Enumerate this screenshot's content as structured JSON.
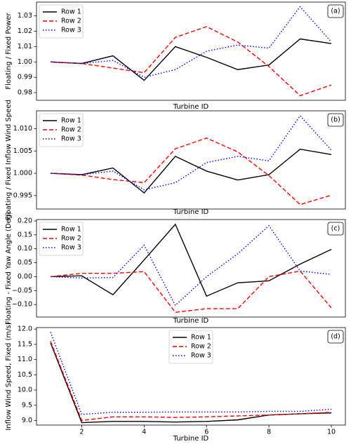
{
  "chart_data": [
    {
      "type": "line",
      "annotation": "(a)",
      "x_label": "Turbine ID",
      "y_label": "Floating / Fixed Power",
      "x": [
        1,
        2,
        3,
        4,
        5,
        6,
        7,
        8,
        9,
        10
      ],
      "xlim": [
        0.55,
        10.45
      ],
      "ylim": [
        0.975,
        1.039
      ],
      "yticks": [
        {
          "value": 0.98,
          "label": "0.98"
        },
        {
          "value": 0.99,
          "label": "0.99"
        },
        {
          "value": 1.0,
          "label": "1.00"
        },
        {
          "value": 1.01,
          "label": "1.01"
        },
        {
          "value": 1.02,
          "label": "1.02"
        },
        {
          "value": 1.03,
          "label": "1.03"
        }
      ],
      "legend": "upper left",
      "series": [
        {
          "name": "Row 1",
          "color": "#000000",
          "linestyle": "solid",
          "values": [
            1.0,
            0.999,
            1.004,
            0.988,
            1.01,
            1.003,
            0.995,
            0.998,
            1.015,
            1.012
          ]
        },
        {
          "name": "Row 2",
          "color": "#ff0000",
          "linestyle": "dashed",
          "values": [
            1.0,
            0.999,
            0.996,
            0.993,
            1.016,
            1.023,
            1.013,
            0.997,
            0.978,
            0.985
          ]
        },
        {
          "name": "Row 3",
          "color": "#0000ff",
          "linestyle": "dotted",
          "values": [
            1.0,
            0.999,
            1.001,
            0.99,
            0.995,
            1.007,
            1.011,
            1.009,
            1.036,
            1.013
          ]
        }
      ]
    },
    {
      "type": "line",
      "annotation": "(b)",
      "x_label": "Turbine ID",
      "y_label": "Floating / Fixed Inflow Wind Speed",
      "x": [
        1,
        2,
        3,
        4,
        5,
        6,
        7,
        8,
        9,
        10
      ],
      "xlim": [
        0.55,
        10.45
      ],
      "ylim": [
        0.992,
        1.014
      ],
      "yticks": [
        0.995,
        {
          "value": 1.0,
          "label": "1.000"
        },
        1.005,
        {
          "value": 1.01,
          "label": "1.010"
        }
      ],
      "legend": "upper left",
      "series": [
        {
          "name": "Row 1",
          "color": "#000000",
          "linestyle": "solid",
          "values": [
            1.0,
            0.9997,
            1.0012,
            0.9956,
            1.0038,
            1.0005,
            0.9985,
            0.9997,
            1.0054,
            1.0042
          ]
        },
        {
          "name": "Row 2",
          "color": "#ff0000",
          "linestyle": "dashed",
          "values": [
            1.0,
            0.9996,
            0.9986,
            0.9979,
            1.0055,
            1.0079,
            1.0048,
            0.9995,
            0.993,
            0.9951
          ]
        },
        {
          "name": "Row 3",
          "color": "#0000ff",
          "linestyle": "dotted",
          "values": [
            1.0,
            0.9997,
            1.0005,
            0.9963,
            0.9979,
            1.0024,
            1.0038,
            1.0028,
            1.0129,
            1.0052
          ]
        }
      ]
    },
    {
      "type": "line",
      "annotation": "(c)",
      "x_label": "Turbine ID",
      "y_label": "Floating - Fixed Yaw Angle (Deg)",
      "x": [
        1,
        2,
        3,
        4,
        5,
        6,
        7,
        8,
        9,
        10
      ],
      "xlim": [
        0.55,
        10.45
      ],
      "ylim": [
        -0.145,
        0.205
      ],
      "yticks": [
        {
          "value": -0.1,
          "label": "−0.10"
        },
        {
          "value": -0.05,
          "label": "−0.05"
        },
        {
          "value": 0,
          "label": "0.00"
        },
        0.05,
        {
          "value": 0.1,
          "label": "0.10"
        },
        0.15,
        {
          "value": 0.2,
          "label": "0.20"
        }
      ],
      "legend": "upper left",
      "series": [
        {
          "name": "Row 1",
          "color": "#000000",
          "linestyle": "solid",
          "values": [
            0,
            0.003,
            -0.065,
            0.06,
            0.188,
            -0.07,
            -0.022,
            -0.015,
            0.045,
            0.098
          ]
        },
        {
          "name": "Row 2",
          "color": "#ff0000",
          "linestyle": "dashed",
          "values": [
            0,
            0.012,
            0.012,
            0.018,
            -0.128,
            -0.115,
            -0.115,
            0.0,
            0.02,
            -0.112
          ]
        },
        {
          "name": "Row 3",
          "color": "#0000ff",
          "linestyle": "dotted",
          "values": [
            0,
            -0.005,
            -0.003,
            0.113,
            -0.103,
            0.0,
            0.082,
            0.183,
            0.02,
            0.008
          ]
        }
      ]
    },
    {
      "type": "line",
      "annotation": "(d)",
      "x_label": "Turbine ID",
      "y_label": "Inflow Wind Speed, Fixed (m/s)",
      "x": [
        1,
        2,
        3,
        4,
        5,
        6,
        7,
        8,
        9,
        10
      ],
      "xlim": [
        0.55,
        10.45
      ],
      "xticks": [
        2,
        4,
        6,
        8,
        10
      ],
      "ylim": [
        8.85,
        12.05
      ],
      "yticks": [
        {
          "value": 9,
          "label": "9.0"
        },
        9.5,
        {
          "value": 10,
          "label": "10.0"
        },
        10.5,
        {
          "value": 11,
          "label": "11.0"
        },
        11.5,
        {
          "value": 12,
          "label": "12.0"
        }
      ],
      "legend": "upper center",
      "series": [
        {
          "name": "Row 1",
          "color": "#000000",
          "linestyle": "solid",
          "values": [
            11.55,
            8.93,
            8.97,
            8.97,
            8.95,
            8.97,
            9.02,
            9.18,
            9.22,
            9.25
          ]
        },
        {
          "name": "Row 2",
          "color": "#ff0000",
          "linestyle": "dashed",
          "values": [
            11.6,
            9.0,
            9.12,
            9.12,
            9.1,
            9.12,
            9.15,
            9.18,
            9.22,
            9.27
          ]
        },
        {
          "name": "Row 3",
          "color": "#0000ff",
          "linestyle": "dotted",
          "values": [
            11.9,
            9.2,
            9.27,
            9.27,
            9.28,
            9.28,
            9.28,
            9.3,
            9.3,
            9.37
          ]
        }
      ]
    }
  ]
}
